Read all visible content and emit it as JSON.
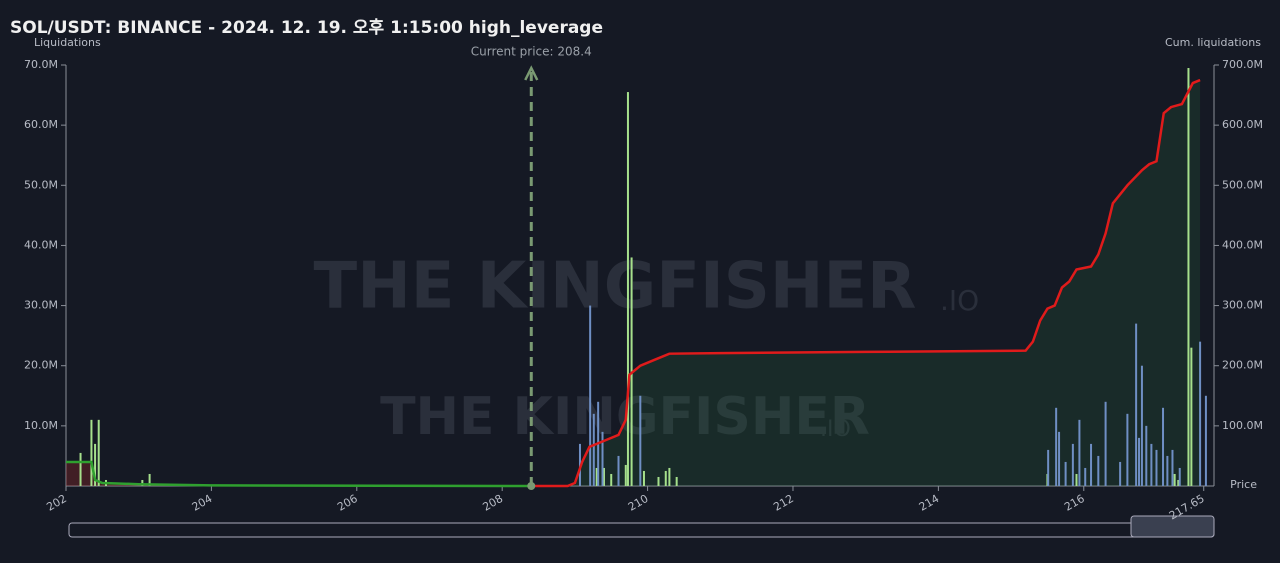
{
  "chart_data": {
    "type": "liquidation",
    "title": "SOL/USDT: BINANCE - 2024. 12. 19. 오후 1:15:00 high_leverage",
    "y_label": "Liquidations",
    "y2_label": "Cum. liquidations",
    "x_label": "Price",
    "watermark": "THE KINGFISHER",
    "watermark_suffix": ".IO",
    "current_price": {
      "value": 208.4,
      "label": "Current price: 208.4"
    },
    "xlim": [
      202,
      217.75
    ],
    "xticks": [
      202,
      204,
      206,
      208,
      210,
      212,
      214,
      216,
      217.65
    ],
    "ylim": [
      0,
      70000000
    ],
    "yticks": [
      {
        "value": 10000000,
        "label": "10.0M"
      },
      {
        "value": 20000000,
        "label": "20.0M"
      },
      {
        "value": 30000000,
        "label": "30.0M"
      },
      {
        "value": 40000000,
        "label": "40.0M"
      },
      {
        "value": 50000000,
        "label": "50.0M"
      },
      {
        "value": 60000000,
        "label": "60.0M"
      },
      {
        "value": 70000000,
        "label": "70.0M"
      }
    ],
    "y2lim": [
      0,
      700000000
    ],
    "y2ticks": [
      {
        "value": 100000000,
        "label": "100.0M"
      },
      {
        "value": 200000000,
        "label": "200.0M"
      },
      {
        "value": 300000000,
        "label": "300.0M"
      },
      {
        "value": 400000000,
        "label": "400.0M"
      },
      {
        "value": 500000000,
        "label": "500.0M"
      },
      {
        "value": 600000000,
        "label": "600.0M"
      },
      {
        "value": 700000000,
        "label": "700.0M"
      }
    ],
    "bars": [
      {
        "color": "#a6e08c",
        "x": [
          202.2,
          202.35,
          202.4,
          202.45,
          202.55,
          203.05,
          203.15,
          209.3,
          209.4,
          209.5,
          209.6,
          209.7,
          209.73,
          209.78,
          209.95,
          210.15,
          210.25,
          210.3,
          210.4,
          215.5,
          215.9,
          216.1,
          217.25,
          217.3,
          217.44,
          217.48
        ],
        "values": [
          5500000,
          11000000,
          7000000,
          11000000,
          1000000,
          1000000,
          2000000,
          3000000,
          3000000,
          2000000,
          1500000,
          3500000,
          65500000,
          38000000,
          2500000,
          1500000,
          2500000,
          3000000,
          1500000,
          2000000,
          2000000,
          1000000,
          2000000,
          1000000,
          69500000,
          23000000
        ]
      },
      {
        "color": "#6f8fc4",
        "x": [
          209.07,
          209.21,
          209.26,
          209.32,
          209.38,
          209.6,
          209.9,
          215.51,
          215.62,
          215.66,
          215.75,
          215.85,
          215.94,
          216.02,
          216.1,
          216.2,
          216.3,
          216.5,
          216.6,
          216.72,
          216.76,
          216.8,
          216.86,
          216.93,
          217.0,
          217.09,
          217.15,
          217.22,
          217.32,
          217.6,
          217.68
        ],
        "values": [
          7000000,
          30000000,
          12000000,
          14000000,
          9000000,
          5000000,
          15000000,
          6000000,
          13000000,
          9000000,
          4000000,
          7000000,
          11000000,
          3000000,
          7000000,
          5000000,
          14000000,
          4000000,
          12000000,
          27000000,
          8000000,
          20000000,
          10000000,
          7000000,
          6000000,
          13000000,
          5000000,
          6000000,
          3000000,
          24000000,
          15000000
        ]
      }
    ],
    "cum_lines": [
      {
        "color": "#2fa02f",
        "x": [
          202,
          202.35,
          202.4,
          202.5,
          203,
          204,
          208.4
        ],
        "values": [
          40000000,
          40000000,
          10000000,
          5000000,
          3000000,
          1000000,
          0
        ]
      },
      {
        "color": "#e01b1b",
        "x": [
          208.4,
          208.9,
          209.0,
          209.1,
          209.2,
          209.4,
          209.6,
          209.7,
          209.75,
          209.9,
          210.1,
          210.3,
          211,
          213,
          215.2,
          215.3,
          215.4,
          215.5,
          215.6,
          215.7,
          215.8,
          215.9,
          216.1,
          216.2,
          216.3,
          216.4,
          216.6,
          216.8,
          216.9,
          217.0,
          217.1,
          217.2,
          217.35,
          217.5,
          217.6
        ],
        "values": [
          0,
          0,
          5000000,
          40000000,
          65000000,
          75000000,
          85000000,
          110000000,
          185000000,
          200000000,
          210000000,
          220000000,
          221000000,
          223000000,
          225000000,
          240000000,
          275000000,
          295000000,
          300000000,
          330000000,
          340000000,
          360000000,
          365000000,
          385000000,
          420000000,
          470000000,
          500000000,
          525000000,
          535000000,
          540000000,
          620000000,
          630000000,
          635000000,
          670000000,
          675000000
        ]
      }
    ]
  }
}
